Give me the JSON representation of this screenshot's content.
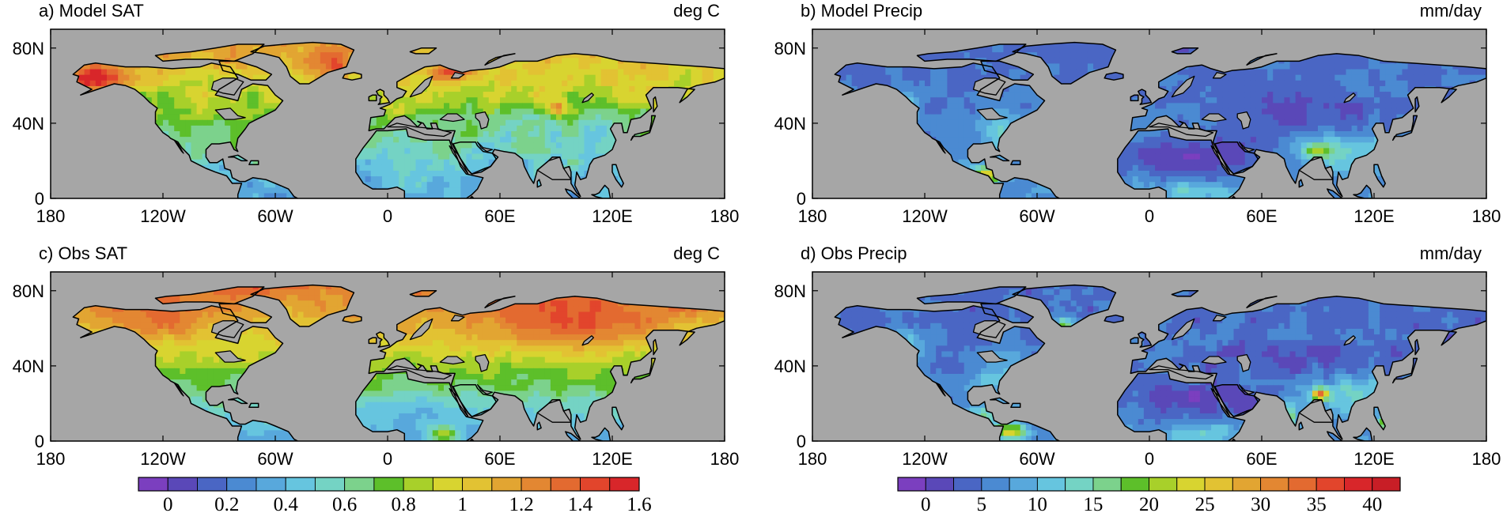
{
  "chart_data": [
    {
      "type": "heatmap",
      "title": "a) Model SAT",
      "units": "deg C",
      "variable": "surface air temperature",
      "source": "model",
      "x_ticks": [
        "180",
        "120W",
        "60W",
        "0",
        "60E",
        "120E",
        "180"
      ],
      "x_tick_values": [
        -180,
        -120,
        -60,
        0,
        60,
        120,
        180
      ],
      "y_ticks": [
        "0",
        "40N",
        "80N"
      ],
      "y_tick_values": [
        0,
        40,
        80
      ],
      "xlim": [
        -180,
        180
      ],
      "ylim": [
        0,
        90
      ],
      "colorbar": "sat"
    },
    {
      "type": "heatmap",
      "title": "b) Model Precip",
      "units": "mm/day",
      "variable": "precipitation",
      "source": "model",
      "x_ticks": [
        "180",
        "120W",
        "60W",
        "0",
        "60E",
        "120E",
        "180"
      ],
      "x_tick_values": [
        -180,
        -120,
        -60,
        0,
        60,
        120,
        180
      ],
      "y_ticks": [
        "0",
        "40N",
        "80N"
      ],
      "y_tick_values": [
        0,
        40,
        80
      ],
      "xlim": [
        -180,
        180
      ],
      "ylim": [
        0,
        90
      ],
      "colorbar": "precip"
    },
    {
      "type": "heatmap",
      "title": "c) Obs SAT",
      "units": "deg C",
      "variable": "surface air temperature",
      "source": "observations",
      "x_ticks": [
        "180",
        "120W",
        "60W",
        "0",
        "60E",
        "120E",
        "180"
      ],
      "x_tick_values": [
        -180,
        -120,
        -60,
        0,
        60,
        120,
        180
      ],
      "y_ticks": [
        "0",
        "40N",
        "80N"
      ],
      "y_tick_values": [
        0,
        40,
        80
      ],
      "xlim": [
        -180,
        180
      ],
      "ylim": [
        0,
        90
      ],
      "colorbar": "sat"
    },
    {
      "type": "heatmap",
      "title": "d) Obs Precip",
      "units": "mm/day",
      "variable": "precipitation",
      "source": "observations",
      "x_ticks": [
        "180",
        "120W",
        "60W",
        "0",
        "60E",
        "120E",
        "180"
      ],
      "x_tick_values": [
        -180,
        -120,
        -60,
        0,
        60,
        120,
        180
      ],
      "y_ticks": [
        "0",
        "40N",
        "80N"
      ],
      "y_tick_values": [
        0,
        40,
        80
      ],
      "xlim": [
        -180,
        180
      ],
      "ylim": [
        0,
        90
      ],
      "colorbar": "precip"
    }
  ],
  "colorbars": {
    "sat": {
      "colors": [
        "#7b3fbf",
        "#5a48b8",
        "#4a66c4",
        "#4b8ad2",
        "#58a8dc",
        "#66c5df",
        "#74d3c4",
        "#7cd28c",
        "#5dbf2a",
        "#a8d02a",
        "#d8d430",
        "#e2c233",
        "#e2a532",
        "#e38732",
        "#e36a30",
        "#e2452c",
        "#d8262a"
      ],
      "labels": [
        "0",
        "0.2",
        "0.4",
        "0.6",
        "0.8",
        "1",
        "1.2",
        "1.4",
        "1.6"
      ],
      "label_values": [
        0,
        0.2,
        0.4,
        0.6,
        0.8,
        1,
        1.2,
        1.4,
        1.6
      ],
      "min": -0.1,
      "step": 0.1
    },
    "precip": {
      "colors": [
        "#7b3fbf",
        "#5a48b8",
        "#4a66c4",
        "#4b8ad2",
        "#58a8dc",
        "#66c5df",
        "#74d3c4",
        "#7cd28c",
        "#5dbf2a",
        "#a8d02a",
        "#d8d430",
        "#e2c233",
        "#e2a532",
        "#e38732",
        "#e36a30",
        "#e2452c",
        "#d8262a",
        "#c81e26"
      ],
      "labels": [
        "0",
        "5",
        "10",
        "15",
        "20",
        "25",
        "30",
        "35",
        "40"
      ],
      "label_values": [
        0,
        5,
        10,
        15,
        20,
        25,
        30,
        35,
        40
      ],
      "min": -2.5,
      "step": 2.5
    }
  },
  "colors": {
    "ocean": "#a6a6a6",
    "coast": "#000000",
    "frame": "#000000"
  }
}
